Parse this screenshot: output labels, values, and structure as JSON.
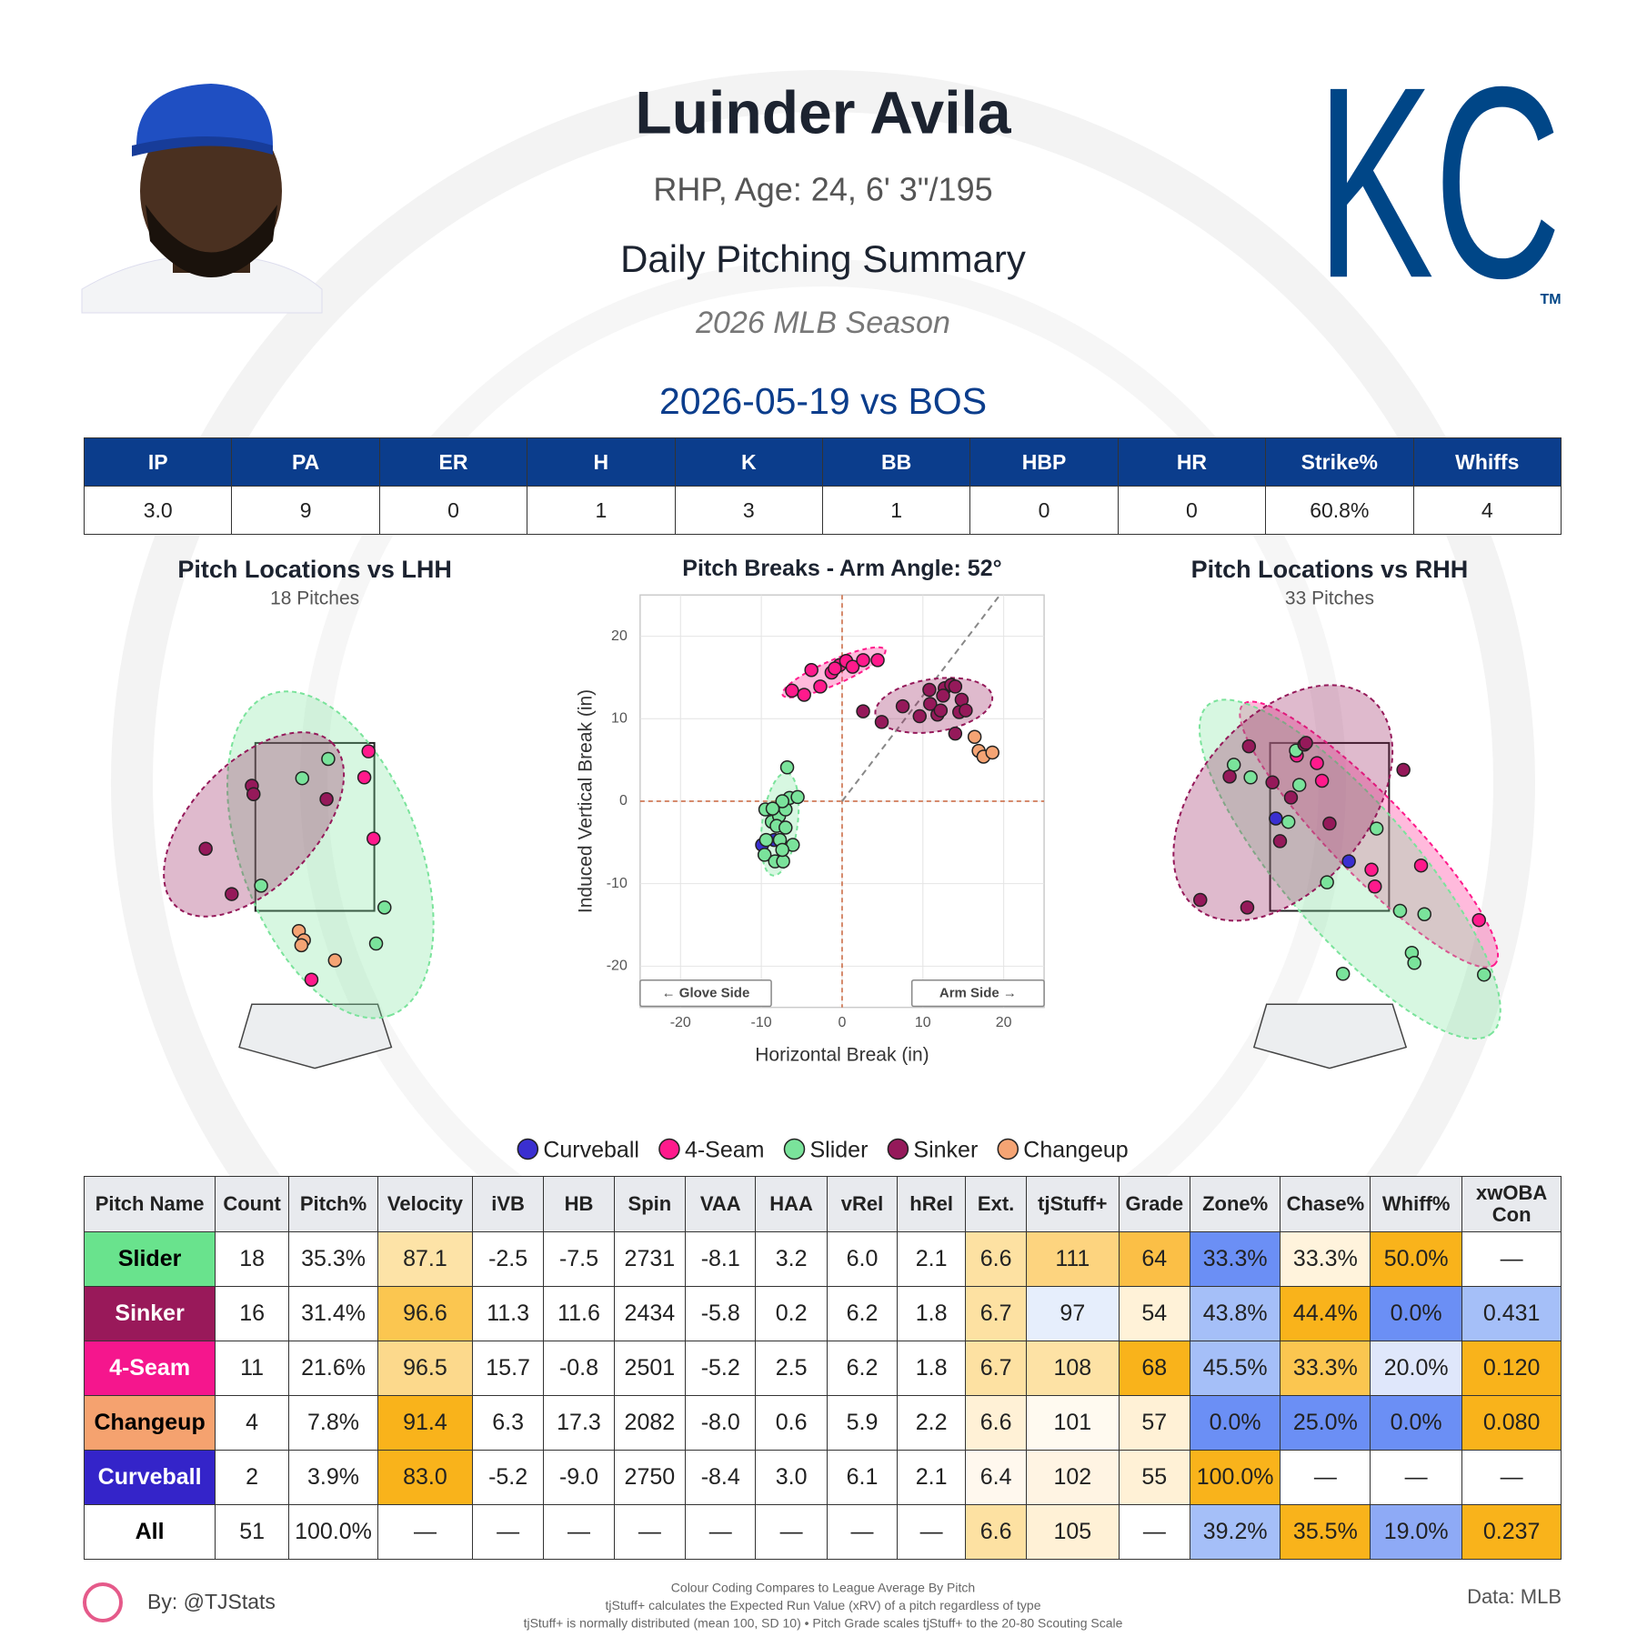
{
  "header": {
    "player_name": "Luinder Avila",
    "bio": "RHP, Age: 24, 6' 3\"/195",
    "report_title": "Daily Pitching Summary",
    "season": "2026 MLB Season",
    "logo": "KC",
    "logo_mark": "TM"
  },
  "game_title": "2026-05-19 vs BOS",
  "summary_table": {
    "header": [
      "IP",
      "PA",
      "ER",
      "H",
      "K",
      "BB",
      "HBP",
      "HR",
      "Strike%",
      "Whiffs"
    ],
    "rows": [
      [
        "3.0",
        "9",
        "0",
        "1",
        "3",
        "1",
        "0",
        "0",
        "60.8%",
        "4"
      ]
    ]
  },
  "chart_data": [
    {
      "type": "scatter",
      "title": "Pitch Locations vs LHH",
      "subtitle": "18 Pitches",
      "series": [
        {
          "name": "4-Seam",
          "color": "#ff1a8c",
          "x": [
            0.64,
            0.59,
            0.7,
            -0.04
          ],
          "y": [
            3.4,
            3.09,
            2.36,
            0.68
          ]
        },
        {
          "name": "Slider",
          "color": "#7ae39b",
          "x": [
            0.16,
            -0.15,
            -0.64,
            0.83,
            0.73
          ],
          "y": [
            3.31,
            3.08,
            1.8,
            1.54,
            1.11
          ]
        },
        {
          "name": "Sinker",
          "color": "#95195a",
          "x": [
            -0.75,
            -0.73,
            -1.3,
            -0.99,
            0.14
          ],
          "y": [
            2.99,
            2.89,
            2.24,
            1.7,
            2.83
          ]
        },
        {
          "name": "Changeup",
          "color": "#f5a474",
          "x": [
            -0.19,
            -0.13,
            -0.16,
            0.24
          ],
          "y": [
            1.26,
            1.15,
            1.09,
            0.91
          ]
        }
      ]
    },
    {
      "type": "scatter",
      "title": "Pitch Breaks - Arm Angle: 52°",
      "xlabel": "Horizontal Break (in)",
      "ylabel": "Induced Vertical Break (in)",
      "xlim": [
        -25,
        25
      ],
      "ylim": [
        -25,
        25
      ],
      "xticks": [
        -20,
        -10,
        0,
        10,
        20
      ],
      "yticks": [
        -20,
        -10,
        0,
        10,
        20
      ],
      "grid": true,
      "arm_angle": 52,
      "annotations": [
        "← Glove Side",
        "Arm Side →"
      ],
      "series": [
        {
          "name": "Curveball",
          "color": "#3a2fd0",
          "x": [
            -9.9,
            -8.4
          ],
          "y": [
            -5.3,
            -4.7
          ]
        },
        {
          "name": "4-Seam",
          "color": "#ff1a8c",
          "x": [
            -6.2,
            -4.7,
            -3.8,
            -2.7,
            -1.3,
            -0.3,
            0.5,
            1.3,
            2.6,
            4.4,
            -0.9
          ],
          "y": [
            13.4,
            12.9,
            15.9,
            13.9,
            15.6,
            16.5,
            17.0,
            16.3,
            17.1,
            17.1,
            16.1
          ]
        },
        {
          "name": "Slider",
          "color": "#7ae39b",
          "x": [
            -6.8,
            -9.5,
            -8.7,
            -7.8,
            -7.0,
            -6.5,
            -5.5,
            -7.4,
            -8.1,
            -7.0,
            -7.7,
            -6.1,
            -9.6,
            -8.3,
            -7.3,
            -9.4,
            -8.6,
            -7.4
          ],
          "y": [
            4.1,
            -1.0,
            -2.5,
            -1.8,
            -1.0,
            0.4,
            0.5,
            0.0,
            -3.0,
            -3.2,
            -4.7,
            -5.3,
            -6.5,
            -7.3,
            -7.3,
            -4.7,
            -0.9,
            -5.9
          ]
        },
        {
          "name": "Sinker",
          "color": "#95195a",
          "x": [
            2.6,
            4.9,
            7.5,
            9.6,
            10.8,
            10.9,
            11.8,
            12.2,
            12.7,
            13.5,
            14.0,
            14.5,
            14.8,
            15.3,
            14.0,
            12.5
          ],
          "y": [
            10.9,
            9.6,
            11.5,
            10.3,
            13.5,
            11.8,
            10.5,
            11.0,
            13.7,
            14.1,
            13.9,
            10.8,
            12.3,
            11.0,
            8.2,
            12.8
          ]
        },
        {
          "name": "Changeup",
          "color": "#f5a474",
          "x": [
            16.4,
            16.9,
            17.5,
            18.6
          ],
          "y": [
            7.8,
            6.1,
            5.4,
            5.9
          ]
        }
      ]
    },
    {
      "type": "scatter",
      "title": "Pitch Locations vs RHH",
      "subtitle": "33 Pitches",
      "series": [
        {
          "name": "Curveball",
          "color": "#3a2fd0",
          "x": [
            -0.64,
            0.23
          ],
          "y": [
            2.6,
            2.09
          ]
        },
        {
          "name": "4-Seam",
          "color": "#ff1a8c",
          "x": [
            -0.39,
            -0.15,
            -0.09,
            0.5,
            1.09,
            1.78,
            0.54
          ],
          "y": [
            3.35,
            3.26,
            3.05,
            1.99,
            2.04,
            1.39,
            1.79
          ]
        },
        {
          "name": "Slider",
          "color": "#7ae39b",
          "x": [
            -1.14,
            -0.94,
            -0.4,
            -0.36,
            -0.49,
            0.56,
            -0.03,
            0.84,
            1.13,
            0.98,
            1.01,
            0.16,
            1.84
          ],
          "y": [
            3.24,
            3.09,
            3.41,
            3.0,
            2.56,
            2.48,
            1.84,
            1.5,
            1.46,
            1.0,
            0.88,
            0.75,
            0.74
          ]
        },
        {
          "name": "Sinker",
          "color": "#95195a",
          "x": [
            -0.96,
            -0.3,
            -1.19,
            -0.68,
            -0.59,
            0.0,
            0.88,
            -1.54,
            -0.98,
            -0.28,
            -0.46
          ],
          "y": [
            3.46,
            3.48,
            3.1,
            3.03,
            2.33,
            2.54,
            3.18,
            1.63,
            1.54,
            3.5,
            2.85
          ]
        }
      ]
    }
  ],
  "pitch_table": {
    "header": [
      "Pitch Name",
      "Count",
      "Pitch%",
      "Velocity",
      "iVB",
      "HB",
      "Spin",
      "VAA",
      "HAA",
      "vRel",
      "hRel",
      "Ext.",
      "tjStuff+",
      "Grade",
      "Zone%",
      "Chase%",
      "Whiff%",
      "xwOBA Con"
    ],
    "rows": [
      {
        "cells": [
          "Slider",
          "18",
          "35.3%",
          "87.1",
          "-2.5",
          "-7.5",
          "2731",
          "-8.1",
          "3.2",
          "6.0",
          "2.1",
          "6.6",
          "111",
          "64",
          "33.3%",
          "33.3%",
          "50.0%",
          "—"
        ],
        "colors": [
          "#69e38d",
          "#ffffff",
          "#ffffff",
          "#fde3a7",
          "#ffffff",
          "#ffffff",
          "#ffffff",
          "#ffffff",
          "#ffffff",
          "#ffffff",
          "#ffffff",
          "#fde1a2",
          "#fdd47f",
          "#fbbf46",
          "#6b8ff5",
          "#fff3dc",
          "#f9b31b",
          "#ffffff"
        ],
        "name_text_color": "#000000"
      },
      {
        "cells": [
          "Sinker",
          "16",
          "31.4%",
          "96.6",
          "11.3",
          "11.6",
          "2434",
          "-5.8",
          "0.2",
          "6.2",
          "1.8",
          "6.7",
          "97",
          "54",
          "43.8%",
          "44.4%",
          "0.0%",
          "0.431"
        ],
        "colors": [
          "#99195a",
          "#ffffff",
          "#ffffff",
          "#fbc650",
          "#ffffff",
          "#ffffff",
          "#ffffff",
          "#ffffff",
          "#ffffff",
          "#ffffff",
          "#ffffff",
          "#fde1a2",
          "#e6eefc",
          "#fff2d8",
          "#a5bff8",
          "#f9b31b",
          "#6b8ff5",
          "#a5bff8"
        ],
        "name_text_color": "#ffffff"
      },
      {
        "cells": [
          "4-Seam",
          "11",
          "21.6%",
          "96.5",
          "15.7",
          "-0.8",
          "2501",
          "-5.2",
          "2.5",
          "6.2",
          "1.8",
          "6.7",
          "108",
          "68",
          "45.5%",
          "33.3%",
          "20.0%",
          "0.120"
        ],
        "colors": [
          "#f5168d",
          "#ffffff",
          "#ffffff",
          "#fcd98c",
          "#ffffff",
          "#ffffff",
          "#ffffff",
          "#ffffff",
          "#ffffff",
          "#ffffff",
          "#ffffff",
          "#fde1a2",
          "#fde2a5",
          "#f9b31b",
          "#a5bff8",
          "#fbc650",
          "#dfe7fb",
          "#f9b31b"
        ],
        "name_text_color": "#ffffff"
      },
      {
        "cells": [
          "Changeup",
          "4",
          "7.8%",
          "91.4",
          "6.3",
          "17.3",
          "2082",
          "-8.0",
          "0.6",
          "5.9",
          "2.2",
          "6.6",
          "101",
          "57",
          "0.0%",
          "25.0%",
          "0.0%",
          "0.080"
        ],
        "colors": [
          "#f5a26f",
          "#ffffff",
          "#ffffff",
          "#f9b31b",
          "#ffffff",
          "#ffffff",
          "#ffffff",
          "#ffffff",
          "#ffffff",
          "#ffffff",
          "#ffffff",
          "#fff1d6",
          "#fffaf0",
          "#fff1d6",
          "#6b8ff5",
          "#6b8ff5",
          "#6b8ff5",
          "#f9b31b"
        ],
        "name_text_color": "#000000"
      },
      {
        "cells": [
          "Curveball",
          "2",
          "3.9%",
          "83.0",
          "-5.2",
          "-9.0",
          "2750",
          "-8.4",
          "3.0",
          "6.1",
          "2.1",
          "6.4",
          "102",
          "55",
          "100.0%",
          "—",
          "—",
          "—"
        ],
        "colors": [
          "#3424c9",
          "#ffffff",
          "#ffffff",
          "#f9b31b",
          "#ffffff",
          "#ffffff",
          "#ffffff",
          "#ffffff",
          "#ffffff",
          "#ffffff",
          "#ffffff",
          "#fff8ee",
          "#fff4e3",
          "#fff1d6",
          "#f9b31b",
          "#ffffff",
          "#ffffff",
          "#ffffff"
        ],
        "name_text_color": "#ffffff"
      },
      {
        "cells": [
          "All",
          "51",
          "100.0%",
          "—",
          "—",
          "—",
          "—",
          "—",
          "—",
          "—",
          "—",
          "6.6",
          "105",
          "—",
          "39.2%",
          "35.5%",
          "19.0%",
          "0.237"
        ],
        "colors": [
          "#ffffff",
          "#ffffff",
          "#ffffff",
          "#ffffff",
          "#ffffff",
          "#ffffff",
          "#ffffff",
          "#ffffff",
          "#ffffff",
          "#ffffff",
          "#ffffff",
          "#fde1a2",
          "#fff1d6",
          "#ffffff",
          "#a5bff8",
          "#f9b31b",
          "#8eaaf6",
          "#f9b31b"
        ],
        "name_text_color": "#000000"
      }
    ]
  },
  "footer": {
    "credit": "By: @TJStats",
    "notes": [
      "Colour Coding Compares to League Average By Pitch",
      "tjStuff+ calculates the Expected Run Value (xRV) of a pitch regardless of type",
      "tjStuff+ is normally distributed (mean 100, SD 10) • Pitch Grade scales tjStuff+ to the 20-80 Scouting Scale"
    ],
    "source": "Data: MLB"
  }
}
